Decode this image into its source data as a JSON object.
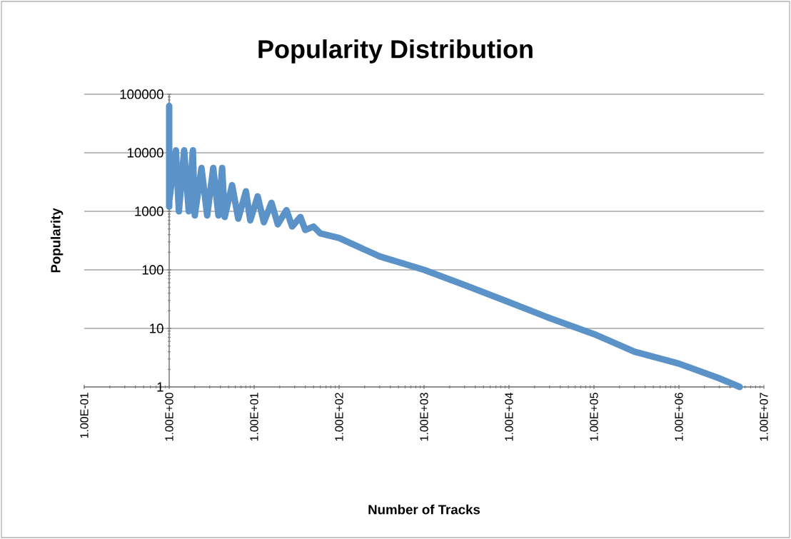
{
  "chart_data": {
    "type": "line",
    "title": "Popularity Distribution",
    "xlabel": "Number of Tracks",
    "ylabel": "Popularity",
    "log": "xy",
    "grid": "y",
    "marker": "none",
    "line_style": "solid",
    "xlim": [
      0.1,
      10000000
    ],
    "ylim": [
      1,
      100000
    ],
    "xticks": [
      {
        "value": 0.1,
        "label": "1.00E-01"
      },
      {
        "value": 1,
        "label": "1.00E+00"
      },
      {
        "value": 10,
        "label": "1.00E+01"
      },
      {
        "value": 100,
        "label": "1.00E+02"
      },
      {
        "value": 1000,
        "label": "1.00E+03"
      },
      {
        "value": 10000,
        "label": "1.00E+04"
      },
      {
        "value": 100000,
        "label": "1.00E+05"
      },
      {
        "value": 1000000,
        "label": "1.00E+06"
      },
      {
        "value": 10000000,
        "label": "1.00E+07"
      }
    ],
    "yticks": [
      1,
      10,
      100,
      1000,
      10000,
      100000
    ],
    "series": [
      {
        "color": "#5b93c9",
        "x": [
          1,
          1,
          1,
          1.2,
          1.3,
          1.5,
          1.7,
          1.9,
          2,
          2.4,
          2.8,
          3.3,
          3.8,
          4.2,
          4.5,
          5.5,
          6.5,
          8,
          9,
          11,
          13,
          16,
          19,
          24,
          28,
          35,
          40,
          50,
          60,
          100,
          300,
          1000,
          3000,
          10000,
          30000,
          100000,
          300000,
          1000000,
          3000000,
          5200000
        ],
        "values": [
          1200,
          63000,
          1500,
          11000,
          1000,
          11000,
          1000,
          11000,
          850,
          5500,
          850,
          5500,
          850,
          5500,
          800,
          2800,
          750,
          2200,
          700,
          1800,
          650,
          1400,
          600,
          1050,
          550,
          800,
          480,
          550,
          420,
          350,
          170,
          100,
          55,
          28,
          15,
          8,
          4,
          2.5,
          1.4,
          1
        ]
      }
    ]
  }
}
